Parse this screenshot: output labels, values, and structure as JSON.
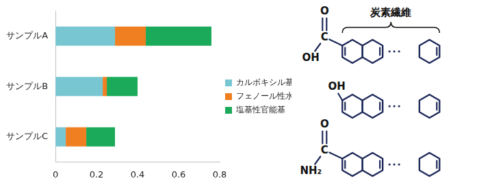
{
  "chart_data": {
    "type": "bar",
    "orientation": "horizontal",
    "stacked": true,
    "categories": [
      "サンプルA",
      "サンプルB",
      "サンプルC"
    ],
    "series": [
      {
        "name": "カルボキシル基",
        "color": "#78C6D2",
        "values": [
          0.29,
          0.23,
          0.05
        ]
      },
      {
        "name": "フェノール性水酸基",
        "color": "#F07F22",
        "values": [
          0.15,
          0.02,
          0.1
        ]
      },
      {
        "name": "塩基性官能基",
        "color": "#1BAA5A",
        "values": [
          0.32,
          0.15,
          0.14
        ]
      }
    ],
    "xlim": [
      0,
      0.8
    ],
    "xticks": [
      0,
      0.2,
      0.4,
      0.6,
      0.8
    ],
    "grid": false,
    "legend": "right"
  },
  "diagram": {
    "label": "炭素繊維",
    "structures": [
      {
        "double_bond": "O",
        "center": "C",
        "single_bond": "OH"
      },
      {
        "single_bond": "OH"
      },
      {
        "double_bond": "O",
        "center": "C",
        "single_bond": "NH₂"
      }
    ]
  }
}
